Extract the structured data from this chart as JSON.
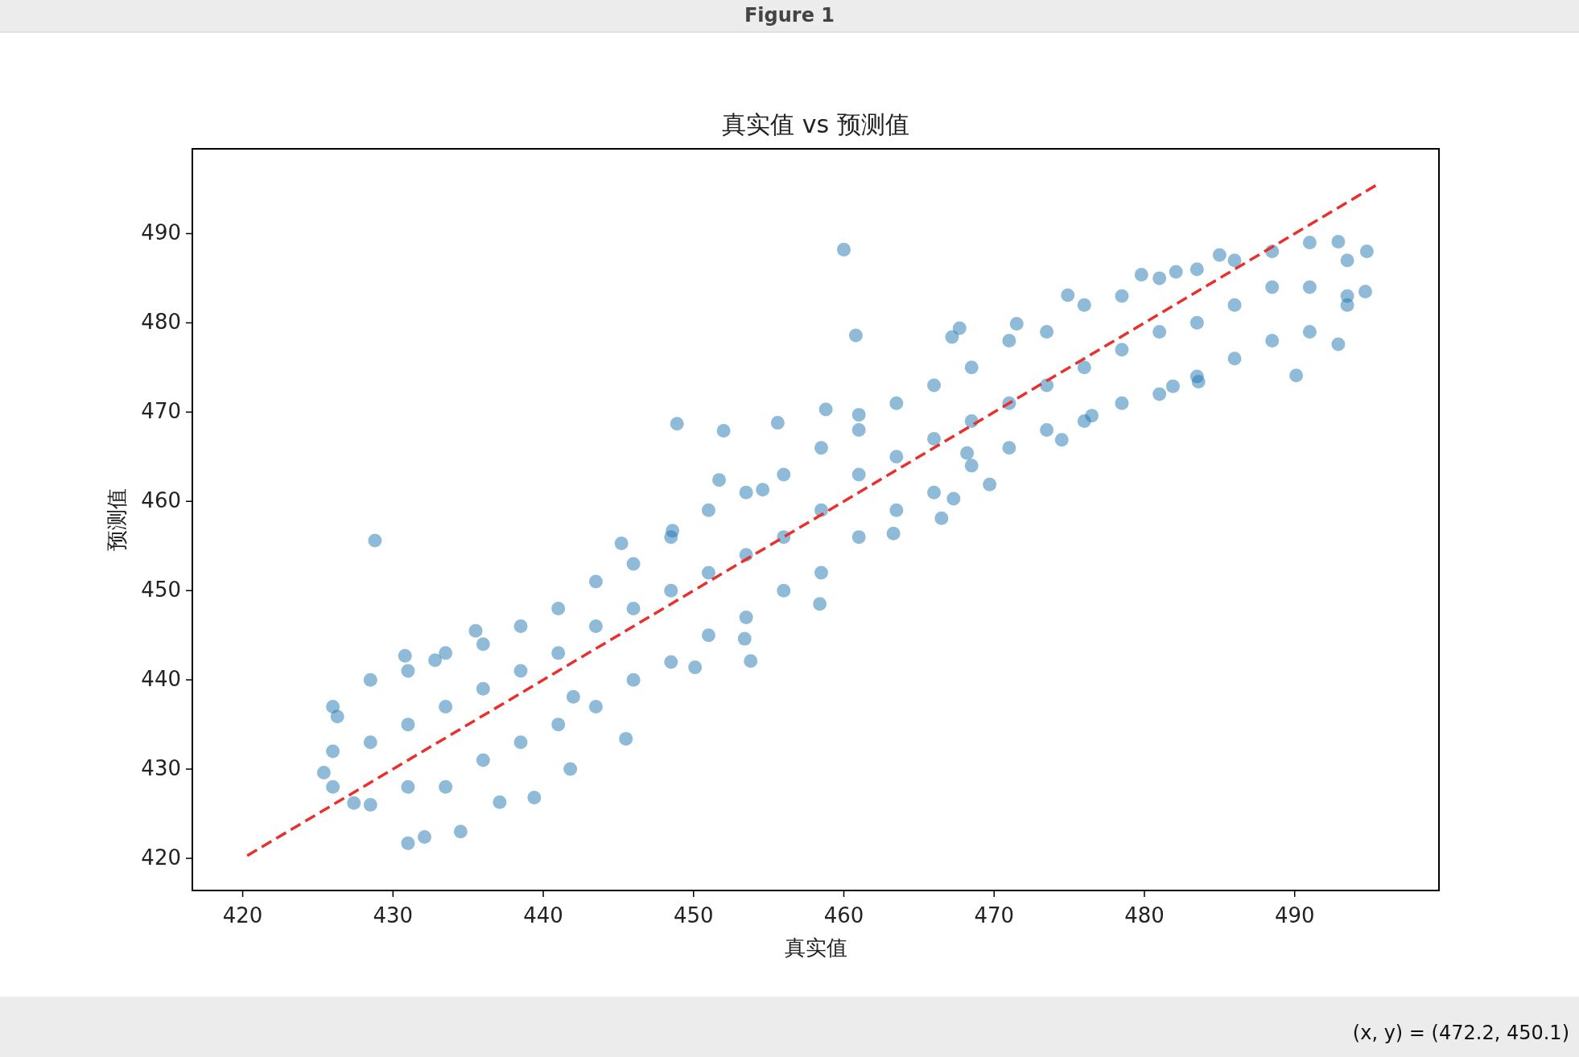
{
  "chart_data": {
    "type": "scatter",
    "title": "真实值 vs 预测值",
    "xlabel": "真实值",
    "ylabel": "预测值",
    "xlim": [
      416.65,
      499.6
    ],
    "ylim": [
      416.4,
      499.5
    ],
    "xticks": [
      420,
      430,
      440,
      450,
      460,
      470,
      480,
      490
    ],
    "yticks": [
      420,
      430,
      440,
      450,
      460,
      470,
      480,
      490
    ],
    "grid": false,
    "annotations": [
      "Figure 1",
      "(x, y) = (472.2, 450.1)"
    ],
    "series": [
      {
        "marker": "circle",
        "color": "#1f77b4",
        "x": [
          428.8,
          460.0,
          460.8,
          448.9,
          452.0,
          490.1,
          492.9,
          494.7,
          494.8,
          492.9,
          485.0,
          458.4,
          431.0,
          432.1,
          434.5,
          425.4,
          426.3,
          427.4,
          430.8,
          432.8,
          435.5,
          439.4,
          441.8,
          445.5,
          445.2,
          448.6,
          451.7,
          454.6,
          455.6,
          458.8,
          461.0,
          463.3,
          466.5,
          467.3,
          469.7,
          467.2,
          467.7,
          471.5,
          474.9,
          479.8,
          482.1,
          483.6,
          481.9,
          476.5,
          474.5,
          468.2,
          453.4,
          450.1,
          453.8,
          442.0,
          437.1,
          426,
          426,
          426,
          428.5,
          428.5,
          428.5,
          431,
          431,
          431,
          433.5,
          433.5,
          433.5,
          436,
          436,
          436,
          438.5,
          438.5,
          438.5,
          441,
          441,
          441,
          443.5,
          443.5,
          443.5,
          446,
          446,
          446,
          448.5,
          448.5,
          448.5,
          451,
          451,
          451,
          453.5,
          453.5,
          453.5,
          456,
          456,
          456,
          458.5,
          458.5,
          458.5,
          461,
          461,
          461,
          463.5,
          463.5,
          463.5,
          466,
          466,
          466,
          468.5,
          468.5,
          468.5,
          471,
          471,
          471,
          473.5,
          473.5,
          473.5,
          476,
          476,
          476,
          478.5,
          478.5,
          478.5,
          481,
          481,
          481,
          483.5,
          483.5,
          483.5,
          486,
          486,
          486,
          488.5,
          488.5,
          488.5,
          491,
          491,
          491,
          493.5,
          493.5,
          493.5
        ],
        "values": [
          455.6,
          488.2,
          478.6,
          468.7,
          467.9,
          474.1,
          477.6,
          483.5,
          488.0,
          489.1,
          487.6,
          448.5,
          421.7,
          422.4,
          423.0,
          429.6,
          435.9,
          426.2,
          442.7,
          442.2,
          445.5,
          426.8,
          430.0,
          433.4,
          455.3,
          456.7,
          462.4,
          461.3,
          468.8,
          470.3,
          469.7,
          456.4,
          458.1,
          460.3,
          461.9,
          478.4,
          479.4,
          479.9,
          483.1,
          485.4,
          485.7,
          473.4,
          472.9,
          469.6,
          466.9,
          465.4,
          444.6,
          441.4,
          442.1,
          438.1,
          426.3,
          437,
          432,
          428,
          440,
          433,
          426,
          441,
          435,
          428,
          443,
          437,
          428,
          444,
          439,
          431,
          446,
          441,
          433,
          448,
          443,
          435,
          451,
          446,
          437,
          453,
          448,
          440,
          456,
          450,
          442,
          459,
          452,
          445,
          461,
          454,
          447,
          463,
          456,
          450,
          466,
          459,
          452,
          468,
          463,
          456,
          471,
          465,
          459,
          473,
          467,
          461,
          475,
          469,
          464,
          478,
          471,
          466,
          479,
          473,
          468,
          482,
          475,
          469,
          483,
          477,
          471,
          485,
          479,
          472,
          486,
          480,
          474,
          487,
          482,
          476,
          488,
          484,
          478,
          489,
          484,
          479,
          487,
          483,
          482
        ]
      },
      {
        "type": "line",
        "marker": "none",
        "color": "#e8312f",
        "line_style": "dashed",
        "x": [
          420.3,
          495.7
        ],
        "values": [
          420.3,
          495.7
        ]
      }
    ]
  }
}
